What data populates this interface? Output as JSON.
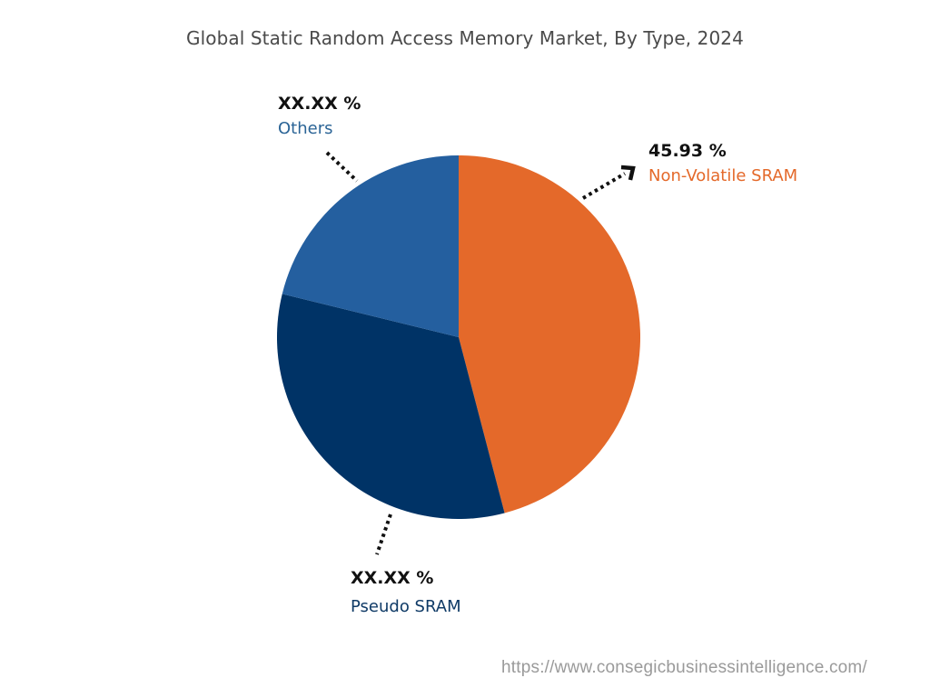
{
  "chart_data": {
    "type": "pie",
    "title": "Global Static Random Access Memory Market, By Type, 2024",
    "slices": [
      {
        "name": "Non-Volatile SRAM",
        "value": 45.93,
        "label": "45.93 %",
        "color": "#e4692a"
      },
      {
        "name": "Pseudo SRAM",
        "value": 32.9,
        "label": "XX.XX %",
        "color": "#003366"
      },
      {
        "name": "Others",
        "value": 21.17,
        "label": "XX.XX %",
        "color": "#245f9f"
      }
    ],
    "start_angle_deg": 0,
    "direction": "clockwise",
    "legend": "none (callout labels)"
  },
  "title": "Global Static Random Access Memory Market, By Type, 2024",
  "labels": {
    "nv": {
      "pct": "45.93 %",
      "name": "Non-Volatile SRAM",
      "color": "#e4692a"
    },
    "pseudo": {
      "pct": "XX.XX %",
      "name": "Pseudo SRAM",
      "color": "#0f3a66"
    },
    "others": {
      "pct": "XX.XX %",
      "name": "Others",
      "color": "#2b6496"
    }
  },
  "footer": {
    "url": "https://www.consegicbusinessintelligence.com/"
  }
}
